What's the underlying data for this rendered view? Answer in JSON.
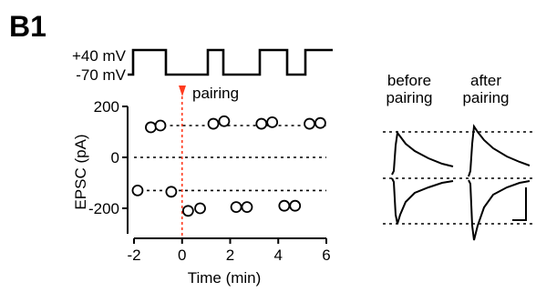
{
  "panel_label": "B1",
  "protocol": {
    "level_high_label": "+40 mV",
    "level_low_label": "-70 mV",
    "pairing_label": "pairing"
  },
  "traces": {
    "before_label_line1": "before",
    "before_label_line2": "pairing",
    "after_label_line1": "after",
    "after_label_line2": "pairing"
  },
  "colors": {
    "pairing_marker": "#ff3b1f",
    "ink": "#000000"
  },
  "chart_data": {
    "type": "scatter",
    "title": "",
    "xlabel": "Time (min)",
    "ylabel": "EPSC (pA)",
    "xlim": [
      -2,
      6
    ],
    "ylim": [
      -300,
      200
    ],
    "xticks": [
      -2,
      0,
      2,
      4,
      6
    ],
    "yticks": [
      -200,
      0,
      200
    ],
    "ytick_labels": [
      "-200",
      "0",
      "200"
    ],
    "grid": false,
    "legend": "none",
    "reference_lines": [
      {
        "y": 125,
        "x_from": -0.5,
        "x_to": 6
      },
      {
        "y": 0,
        "x_from": -2,
        "x_to": 6
      },
      {
        "y": -130,
        "x_from": -2,
        "x_to": 6
      }
    ],
    "pairing_time": 0,
    "series": [
      {
        "x": [
          -1.3,
          -0.9,
          1.3,
          1.75,
          3.3,
          3.75,
          5.3,
          5.75
        ],
        "y": [
          118,
          125,
          132,
          142,
          132,
          138,
          132,
          135
        ]
      },
      {
        "x": [
          -1.85,
          -0.45,
          0.25,
          0.75,
          2.25,
          2.7,
          4.25,
          4.7
        ],
        "y": [
          -130,
          -135,
          -210,
          -200,
          -195,
          -195,
          -190,
          -190
        ]
      }
    ]
  }
}
